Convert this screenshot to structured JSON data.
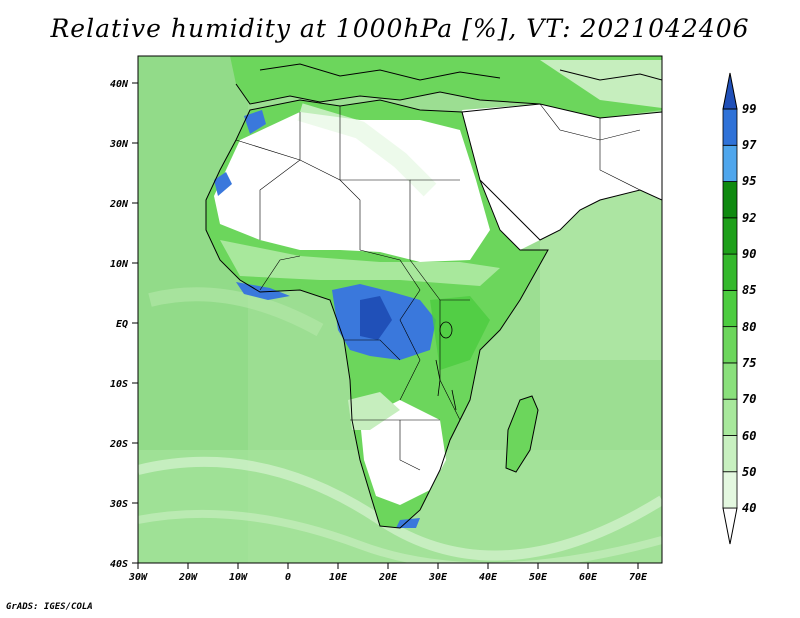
{
  "title": "Relative humidity at 1000hPa [%], VT: 2021042406",
  "credit": "GrADS: IGES/COLA",
  "lat_labels": [
    "40N",
    "30N",
    "20N",
    "10N",
    "EQ",
    "10S",
    "20S",
    "30S",
    "40S"
  ],
  "lon_labels": [
    "30W",
    "20W",
    "10W",
    "0",
    "10E",
    "20E",
    "30E",
    "40E",
    "50E",
    "60E",
    "70E"
  ],
  "colorbar": {
    "labels": [
      "40",
      "50",
      "60",
      "70",
      "75",
      "80",
      "85",
      "90",
      "92",
      "95",
      "97",
      "99"
    ],
    "colors": [
      "#ffffff",
      "#e4f8e0",
      "#c8f0c0",
      "#a8e89c",
      "#8ae07c",
      "#6cd65c",
      "#4ccc40",
      "#34b82c",
      "#1ea01a",
      "#0f8a10",
      "#4fa6ec",
      "#2f72d8",
      "#2050b8"
    ]
  },
  "colors": {
    "ocean": "#9cde92",
    "land_dry": "#ffffff",
    "land_moist": "#5fd250",
    "wet": "#3a78dc"
  }
}
